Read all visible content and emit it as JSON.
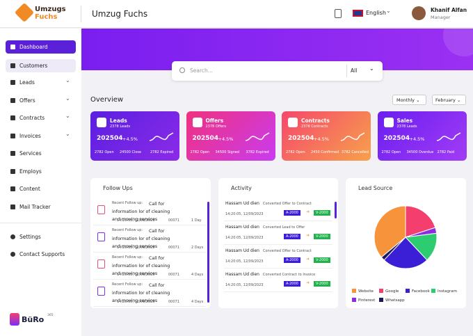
{
  "logo": {
    "line1": "Umzugs",
    "line2": "Fuchs"
  },
  "header": {
    "title": "Umzug Fuchs",
    "language": "English",
    "user_name": "Khanif Alfan",
    "user_role": "Manager"
  },
  "sidebar": {
    "items": [
      "Dashboard",
      "Customers",
      "Leads",
      "Offers",
      "Contracts",
      "Invoices",
      "Services",
      "Employs",
      "Content",
      "Mail Tracker"
    ],
    "bottom_items": [
      "Settings",
      "Contact Supports"
    ],
    "brand": "BüRo",
    "brand_sup": "365"
  },
  "search": {
    "placeholder": "Search...",
    "filter": "All"
  },
  "overview": {
    "title": "Overview",
    "period": "Monthly",
    "month": "February",
    "cards": [
      {
        "title": "Leads",
        "subtitle": "2378 Leads",
        "value": "202504",
        "change": "+4.5%",
        "stats": [
          "2782 Open",
          "24500 Close",
          "2782 Expired"
        ]
      },
      {
        "title": "Offers",
        "subtitle": "2378 Offers",
        "value": "202504",
        "change": "+4.5%",
        "stats": [
          "2782 Open",
          "34500 Signed",
          "3782 Expired"
        ]
      },
      {
        "title": "Contracts",
        "subtitle": "2378 Contracts",
        "value": "202504",
        "change": "+4.5%",
        "stats": [
          "2782 Open",
          "2450 Confirmed",
          "3782 Cancelled"
        ]
      },
      {
        "title": "Sales",
        "subtitle": "2378 Leads",
        "value": "202504",
        "change": "+4.5%",
        "stats": [
          "2782 Open",
          "34500 Overdue",
          "2782 Paid"
        ]
      }
    ]
  },
  "follow_ups": {
    "title": "Follow Ups",
    "items": [
      {
        "label": "Recent Follow up:",
        "text": "Call for information lor of cleaning and moving services",
        "time": "14:20:05, 12/09/2023",
        "id": "00071",
        "duration": "1 Day"
      },
      {
        "label": "Recent Follow up:",
        "text": "Call for information lor of cleaning and moving services",
        "time": "14:20:05, 12/09/2023",
        "id": "00071",
        "duration": "2 Days"
      },
      {
        "label": "Recent Follow up:",
        "text": "Call for information lor of cleaning and moving services",
        "time": "14:20:05, 12/09/2023",
        "id": "00071",
        "duration": "4 Days"
      },
      {
        "label": "Recent Follow up:",
        "text": "Call for information lor of cleaning and moving services",
        "time": "14:20:05, 12/09/2023",
        "id": "00071",
        "duration": "4 Days"
      }
    ]
  },
  "activity": {
    "title": "Activity",
    "items": [
      {
        "name": "Hassam Ud dien",
        "action": "Converted Offer to Contract",
        "time": "14:20:05, 12/09/2023",
        "from": "A-2000",
        "to": "V-2000"
      },
      {
        "name": "Hassam Ud dien",
        "action": "Converted Lead to Offer",
        "time": "14:20:05, 12/09/2023",
        "from": "A-2000",
        "to": "V-2000"
      },
      {
        "name": "Hassam Ud dien",
        "action": "Converted Offer to Contract",
        "time": "14:20:05, 12/09/2023",
        "from": "A-2000",
        "to": "V-2000"
      },
      {
        "name": "Hassam Ud dien",
        "action": "Converted Contract to Invoice",
        "time": "14:20:05, 12/09/2023",
        "from": "A-2000",
        "to": "V-2000"
      }
    ]
  },
  "chart_data": {
    "type": "pie",
    "title": "Lead Source",
    "categories": [
      "Google",
      "Pinterest",
      "Instagram",
      "Facebook",
      "Whatsapp",
      "Website"
    ],
    "values": [
      20,
      3,
      15,
      24,
      2,
      36
    ],
    "colors": [
      "#f43f6e",
      "#8b2be2",
      "#2ecc71",
      "#3b1fd6",
      "#1a1a5e",
      "#f7943b"
    ],
    "legend_order": [
      5,
      0,
      3,
      2,
      1,
      4
    ]
  }
}
